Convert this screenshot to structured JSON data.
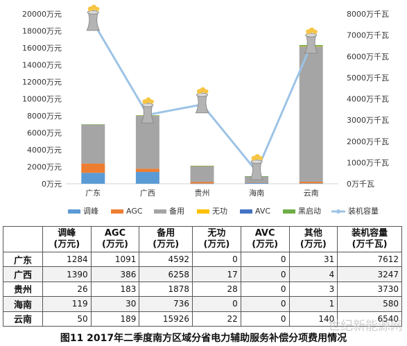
{
  "chart_data": {
    "type": "bar",
    "stacked": true,
    "categories": [
      "广东",
      "广西",
      "贵州",
      "海南",
      "云南"
    ],
    "series": [
      {
        "name": "调峰",
        "color": "#5b9bd5",
        "values": [
          1284,
          1390,
          26,
          119,
          50
        ]
      },
      {
        "name": "AGC",
        "color": "#ed7d31",
        "values": [
          1091,
          386,
          183,
          30,
          189
        ]
      },
      {
        "name": "备用",
        "color": "#a5a5a5",
        "values": [
          4592,
          6258,
          1878,
          736,
          15926
        ]
      },
      {
        "name": "无功",
        "color": "#ffc000",
        "values": [
          0,
          17,
          28,
          0,
          22
        ]
      },
      {
        "name": "AVC",
        "color": "#4472c4",
        "values": [
          0,
          0,
          0,
          0,
          0
        ]
      },
      {
        "name": "黑启动",
        "color": "#70ad47",
        "values": [
          31,
          4,
          3,
          1,
          140
        ]
      }
    ],
    "line": {
      "name": "装机容量",
      "color": "#9dc3e6",
      "axis": "right",
      "values": [
        7612,
        3247,
        3730,
        580,
        6540
      ]
    },
    "left_axis": {
      "ylim": [
        0,
        20000
      ],
      "ticks": [
        "0万元",
        "2000万元",
        "4000万元",
        "6000万元",
        "8000万元",
        "10000万元",
        "12000万元",
        "14000万元",
        "16000万元",
        "18000万元",
        "20000万元"
      ]
    },
    "right_axis": {
      "ylim": [
        0,
        8000
      ],
      "ticks": [
        "0万千瓦",
        "1000万千瓦",
        "2000万千瓦",
        "3000万千瓦",
        "4000万千瓦",
        "5000万千瓦",
        "6000万千瓦",
        "7000万千瓦",
        "8000万千瓦"
      ]
    },
    "legend": [
      "调峰",
      "AGC",
      "备用",
      "无功",
      "AVC",
      "黑启动",
      "装机容量"
    ],
    "legend_placement": "bottom",
    "grid": false
  },
  "table": {
    "headers": [
      {
        "top": "调峰",
        "bottom": "(万元)"
      },
      {
        "top": "AGC",
        "bottom": "(万元)"
      },
      {
        "top": "备用",
        "bottom": "(万元)"
      },
      {
        "top": "无功",
        "bottom": "(万元)"
      },
      {
        "top": "AVC",
        "bottom": "(万元)"
      },
      {
        "top": "其他",
        "bottom": "(万元)"
      },
      {
        "top": "装机容量",
        "bottom": "(万千瓦)"
      }
    ],
    "rows": [
      {
        "name": "广东",
        "cells": [
          "1284",
          "1091",
          "4592",
          "0",
          "0",
          "31",
          "7612"
        ]
      },
      {
        "name": "广西",
        "cells": [
          "1390",
          "386",
          "6258",
          "17",
          "0",
          "4",
          "3247"
        ]
      },
      {
        "name": "贵州",
        "cells": [
          "26",
          "183",
          "1878",
          "28",
          "0",
          "3",
          "3730"
        ]
      },
      {
        "name": "海南",
        "cells": [
          "119",
          "30",
          "736",
          "0",
          "0",
          "1",
          "580"
        ]
      },
      {
        "name": "云南",
        "cells": [
          "50",
          "189",
          "15926",
          "22",
          "0",
          "140",
          "6540"
        ]
      }
    ]
  },
  "caption": "图11  2017年二季度南方区域分省电力辅助服务补偿分项费用情况",
  "watermark": "世纪新能源网"
}
